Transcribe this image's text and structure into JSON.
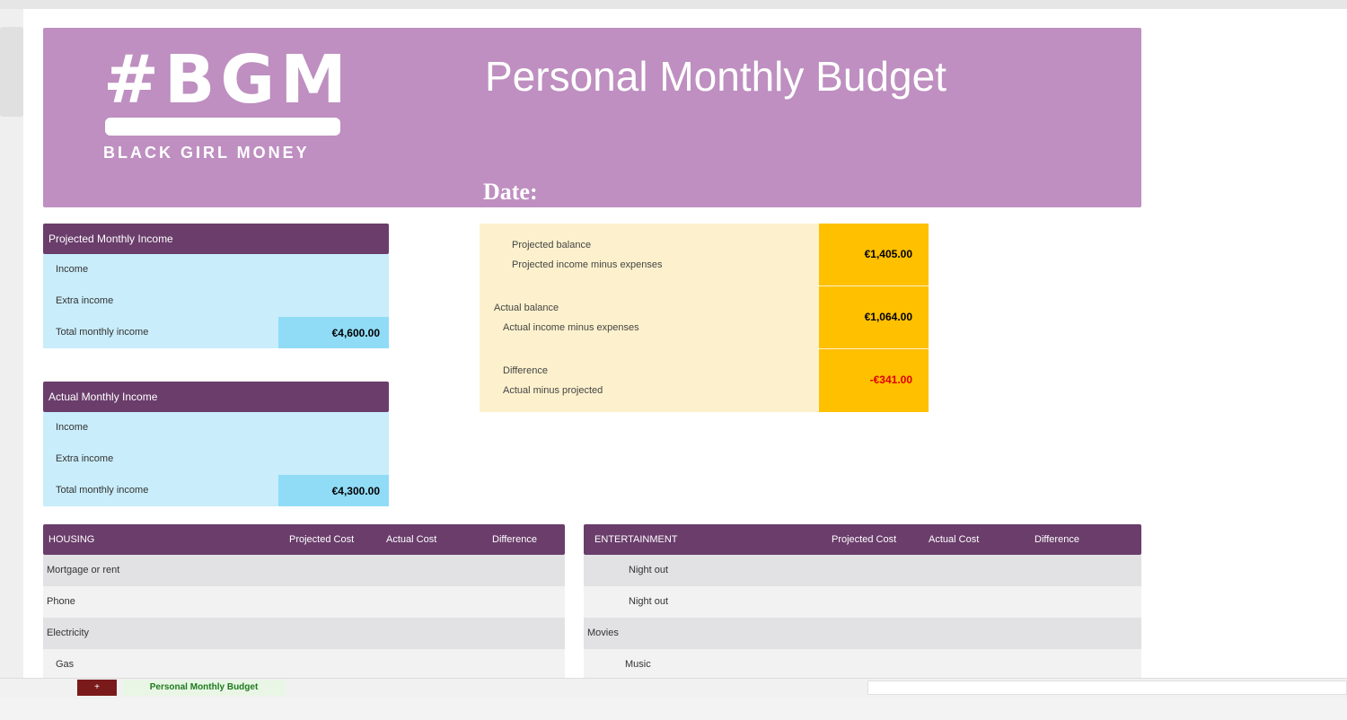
{
  "banner": {
    "logo_main": "#BGM",
    "logo_sub": "BLACK GIRL MONEY",
    "title": "Personal Monthly Budget",
    "date_label": "Date:"
  },
  "projected_income": {
    "header": "Projected Monthly Income",
    "rows": [
      {
        "label": "Income",
        "value": ""
      },
      {
        "label": "Extra income",
        "value": ""
      },
      {
        "label": "Total monthly income",
        "value": "€4,600.00"
      }
    ]
  },
  "actual_income": {
    "header": "Actual Monthly Income",
    "rows": [
      {
        "label": "Income",
        "value": ""
      },
      {
        "label": "Extra income",
        "value": ""
      },
      {
        "label": "Total monthly income",
        "value": "€4,300.00"
      }
    ]
  },
  "summary": {
    "rows": [
      {
        "line1": "Projected balance",
        "line2": "Projected income minus expenses",
        "value": "€1,405.00",
        "negative": false
      },
      {
        "line1": "Actual balance",
        "line2": "Actual income minus expenses",
        "value": "€1,064.00",
        "negative": false
      },
      {
        "line1": "Difference",
        "line2": "Actual minus projected",
        "value": "-€341.00",
        "negative": true
      }
    ]
  },
  "housing": {
    "title": "HOUSING",
    "col_projected": "Projected Cost",
    "col_actual": "Actual Cost",
    "col_difference": "Difference",
    "rows": [
      {
        "label": "Mortgage or rent",
        "projected": "",
        "actual": "",
        "difference": ""
      },
      {
        "label": "Phone",
        "projected": "",
        "actual": "",
        "difference": ""
      },
      {
        "label": "Electricity",
        "projected": "",
        "actual": "",
        "difference": ""
      },
      {
        "label": "Gas",
        "projected": "",
        "actual": "",
        "difference": ""
      }
    ]
  },
  "entertainment": {
    "title": "ENTERTAINMENT",
    "col_projected": "Projected Cost",
    "col_actual": "Actual Cost",
    "col_difference": "Difference",
    "rows": [
      {
        "label": "Night out",
        "difference": ""
      },
      {
        "label": "Night out",
        "difference": ""
      },
      {
        "label": "Movies",
        "difference": ""
      },
      {
        "label": "Music",
        "difference": ""
      }
    ]
  },
  "tabs": {
    "add_label": "+",
    "sheet_label": "Personal Monthly Budget"
  },
  "colors": {
    "banner": "#be8fc0",
    "header": "#6a3d6b",
    "income_row": "#c9edfb",
    "income_total": "#90dcf7",
    "summary_bg": "#fdf1cd",
    "summary_value": "#ffc000",
    "negative_text": "#e00000"
  }
}
